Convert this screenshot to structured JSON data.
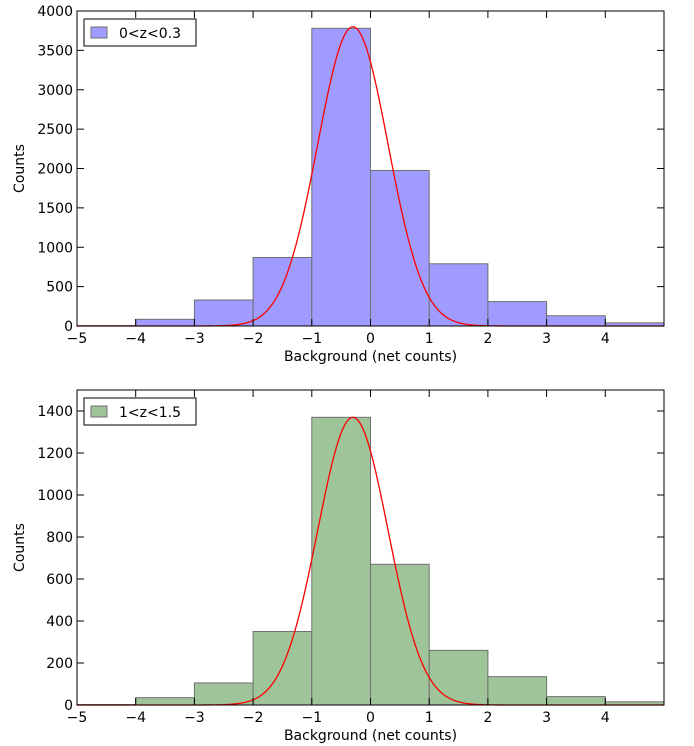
{
  "chart_data": [
    {
      "type": "bar",
      "subtype": "histogram",
      "xlabel": "Background (net counts)",
      "ylabel": "Counts",
      "xlim": [
        -5,
        5
      ],
      "ylim": [
        0,
        4000
      ],
      "xticks": [
        -5,
        -4,
        -3,
        -2,
        -1,
        0,
        1,
        2,
        3,
        4
      ],
      "yticks": [
        0,
        500,
        1000,
        1500,
        2000,
        2500,
        3000,
        3500,
        4000
      ],
      "legend": {
        "label": "0<z<0.3",
        "location": "upper-left"
      },
      "grid": false,
      "bins": [
        {
          "x0": -5,
          "x1": -4,
          "value": 5
        },
        {
          "x0": -4,
          "x1": -3,
          "value": 85
        },
        {
          "x0": -3,
          "x1": -2,
          "value": 330
        },
        {
          "x0": -2,
          "x1": -1,
          "value": 870
        },
        {
          "x0": -1,
          "x1": 0,
          "value": 3780
        },
        {
          "x0": 0,
          "x1": 1,
          "value": 1975
        },
        {
          "x0": 1,
          "x1": 2,
          "value": 790
        },
        {
          "x0": 2,
          "x1": 3,
          "value": 310
        },
        {
          "x0": 3,
          "x1": 4,
          "value": 130
        },
        {
          "x0": 4,
          "x1": 5,
          "value": 40
        }
      ],
      "fit_curve": {
        "kind": "gaussian",
        "amplitude": 3800,
        "mean": -0.3,
        "sigma": 0.6,
        "color": "#ff0000"
      },
      "bar_color": "#a09cff",
      "bar_edge_color": "#707070"
    },
    {
      "type": "bar",
      "subtype": "histogram",
      "xlabel": "Background (net counts)",
      "ylabel": "Counts",
      "xlim": [
        -5,
        5
      ],
      "ylim": [
        0,
        1500
      ],
      "xticks": [
        -5,
        -4,
        -3,
        -2,
        -1,
        0,
        1,
        2,
        3,
        4
      ],
      "yticks": [
        0,
        200,
        400,
        600,
        800,
        1000,
        1200,
        1400
      ],
      "legend": {
        "label": "1<z<1.5",
        "location": "upper-left"
      },
      "grid": false,
      "bins": [
        {
          "x0": -5,
          "x1": -4,
          "value": 2
        },
        {
          "x0": -4,
          "x1": -3,
          "value": 35
        },
        {
          "x0": -3,
          "x1": -2,
          "value": 105
        },
        {
          "x0": -2,
          "x1": -1,
          "value": 350
        },
        {
          "x0": -1,
          "x1": 0,
          "value": 1370
        },
        {
          "x0": 0,
          "x1": 1,
          "value": 670
        },
        {
          "x0": 1,
          "x1": 2,
          "value": 260
        },
        {
          "x0": 2,
          "x1": 3,
          "value": 135
        },
        {
          "x0": 3,
          "x1": 4,
          "value": 40
        },
        {
          "x0": 4,
          "x1": 5,
          "value": 15
        }
      ],
      "fit_curve": {
        "kind": "gaussian",
        "amplitude": 1370,
        "mean": -0.3,
        "sigma": 0.6,
        "color": "#ff0000"
      },
      "bar_color": "#a0c49a",
      "bar_edge_color": "#707070"
    }
  ]
}
